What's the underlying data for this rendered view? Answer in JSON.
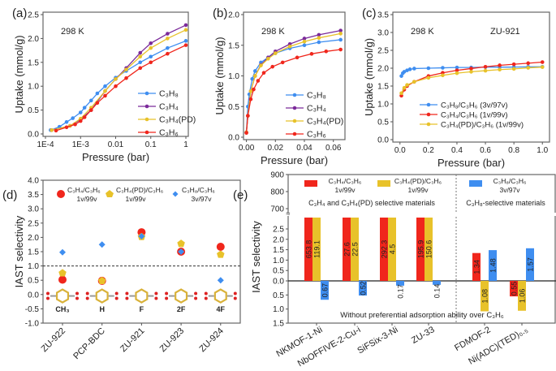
{
  "colors": {
    "blue": "#3f8ef0",
    "purple": "#7b2a9a",
    "yellow": "#e8c22a",
    "red": "#f0261c",
    "axis": "#555555",
    "highlight": "#e8322a"
  },
  "chart_data": [
    {
      "panel": "(a)",
      "type": "line",
      "annotation": "298 K",
      "xlabel": "Pressure (bar)",
      "ylabel": "Uptake (mmol/g)",
      "xscale": "log",
      "xlim": [
        0.0001,
        1
      ],
      "ylim": [
        0,
        2.5
      ],
      "xticks": [
        0.0001,
        0.001,
        0.01,
        0.1,
        1
      ],
      "xtick_labels": [
        "1E-4",
        "1E-3",
        "0.01",
        "0.1",
        "1"
      ],
      "yticks": [
        0,
        0.5,
        1,
        1.5,
        2,
        2.5
      ],
      "ytick_labels": [
        "0.0",
        "0.5",
        "1.0",
        "1.5",
        "2.0",
        "2.5"
      ],
      "legend": "bottom-right",
      "series": [
        {
          "name": "C₃H₈",
          "color": "blue",
          "x": [
            0.00014,
            0.00025,
            0.0004,
            0.0006,
            0.001,
            0.0013,
            0.002,
            0.003,
            0.005,
            0.01,
            0.02,
            0.05,
            0.1,
            0.3,
            1
          ],
          "y": [
            0.08,
            0.15,
            0.25,
            0.33,
            0.45,
            0.55,
            0.7,
            0.85,
            1.0,
            1.18,
            1.32,
            1.5,
            1.62,
            1.8,
            1.95
          ]
        },
        {
          "name": "C₃H₄",
          "color": "purple",
          "x": [
            0.00015,
            0.0005,
            0.001,
            0.002,
            0.005,
            0.01,
            0.02,
            0.05,
            0.1,
            0.3,
            1
          ],
          "y": [
            0.08,
            0.17,
            0.3,
            0.5,
            0.9,
            1.15,
            1.38,
            1.7,
            1.9,
            2.1,
            2.28
          ]
        },
        {
          "name": "C₃H₄(PD)",
          "color": "yellow",
          "x": [
            0.00015,
            0.0005,
            0.001,
            0.002,
            0.005,
            0.01,
            0.02,
            0.05,
            0.1,
            0.3,
            1
          ],
          "y": [
            0.08,
            0.17,
            0.32,
            0.55,
            0.9,
            1.15,
            1.35,
            1.62,
            1.8,
            2.0,
            2.18
          ]
        },
        {
          "name": "C₃H₆",
          "color": "red",
          "x": [
            0.0002,
            0.0004,
            0.0007,
            0.001,
            0.0013,
            0.002,
            0.003,
            0.005,
            0.01,
            0.02,
            0.05,
            0.1,
            0.3,
            1
          ],
          "y": [
            0.07,
            0.14,
            0.2,
            0.27,
            0.35,
            0.5,
            0.65,
            0.8,
            1.0,
            1.17,
            1.38,
            1.5,
            1.68,
            1.86
          ]
        }
      ]
    },
    {
      "panel": "(b)",
      "type": "line",
      "annotation": "298 K",
      "xlabel": "Pressure (bar)",
      "ylabel": "Uptake (mmol/g)",
      "xlim": [
        -0.002,
        0.068
      ],
      "ylim": [
        0,
        2.0
      ],
      "xticks": [
        0,
        0.02,
        0.04,
        0.06
      ],
      "xtick_labels": [
        "0.00",
        "0.02",
        "0.04",
        "0.06"
      ],
      "yticks": [
        0,
        0.5,
        1,
        1.5,
        2
      ],
      "ytick_labels": [
        "0.0",
        "0.5",
        "1.0",
        "1.5",
        "2.0"
      ],
      "legend": "bottom-right",
      "series": [
        {
          "name": "C₃H₈",
          "color": "blue",
          "x": [
            0,
            0.001,
            0.002,
            0.004,
            0.006,
            0.01,
            0.015,
            0.02,
            0.03,
            0.04,
            0.05,
            0.065
          ],
          "y": [
            0.08,
            0.5,
            0.7,
            0.95,
            1.08,
            1.22,
            1.3,
            1.37,
            1.45,
            1.5,
            1.55,
            1.59
          ]
        },
        {
          "name": "C₃H₄",
          "color": "purple",
          "x": [
            0,
            0.001,
            0.003,
            0.006,
            0.01,
            0.015,
            0.02,
            0.03,
            0.04,
            0.05,
            0.065
          ],
          "y": [
            0.08,
            0.35,
            0.75,
            1.0,
            1.18,
            1.3,
            1.4,
            1.52,
            1.61,
            1.67,
            1.74
          ]
        },
        {
          "name": "C₃H₄(PD)",
          "color": "yellow",
          "x": [
            0,
            0.001,
            0.003,
            0.006,
            0.01,
            0.015,
            0.02,
            0.03,
            0.04,
            0.05,
            0.065
          ],
          "y": [
            0.08,
            0.35,
            0.75,
            1.0,
            1.17,
            1.28,
            1.37,
            1.48,
            1.56,
            1.62,
            1.69
          ]
        },
        {
          "name": "C₃H₆",
          "color": "red",
          "x": [
            0,
            0.001,
            0.003,
            0.005,
            0.008,
            0.012,
            0.018,
            0.025,
            0.035,
            0.045,
            0.055,
            0.065
          ],
          "y": [
            0.07,
            0.35,
            0.62,
            0.78,
            0.92,
            1.05,
            1.15,
            1.22,
            1.3,
            1.36,
            1.4,
            1.43
          ]
        }
      ]
    },
    {
      "panel": "(c)",
      "type": "line",
      "annotation": "298 K",
      "annotation2": "ZU-921",
      "xlabel": "Pressure (bar)",
      "ylabel": "Uptake (mmol/g)",
      "xlim": [
        -0.05,
        1.05
      ],
      "ylim": [
        0,
        3.5
      ],
      "xticks": [
        0,
        0.2,
        0.4,
        0.6,
        0.8,
        1.0
      ],
      "xtick_labels": [
        "0.0",
        "0.2",
        "0.4",
        "0.6",
        "0.8",
        "1.0"
      ],
      "yticks": [
        0,
        0.5,
        1,
        1.5,
        2,
        2.5,
        3,
        3.5
      ],
      "ytick_labels": [
        "0.0",
        "0.5",
        "1.0",
        "1.5",
        "2.0",
        "2.5",
        "3.0",
        "3.5"
      ],
      "legend": "bottom",
      "series": [
        {
          "name": "C₃H₈/C₃H₆  (3v/97v)",
          "color": "blue",
          "x": [
            0.01,
            0.02,
            0.03,
            0.05,
            0.07,
            0.1,
            0.2,
            0.3,
            0.4,
            0.5,
            0.6,
            0.7,
            0.8,
            0.9,
            1.0
          ],
          "y": [
            1.78,
            1.86,
            1.9,
            1.94,
            1.97,
            1.99,
            2.0,
            2.01,
            2.02,
            2.02,
            2.03,
            2.03,
            2.03,
            2.04,
            2.04
          ]
        },
        {
          "name": "C₃H₄/C₃H₆  (1v/99v)",
          "color": "red",
          "x": [
            0.01,
            0.03,
            0.05,
            0.1,
            0.2,
            0.3,
            0.4,
            0.5,
            0.6,
            0.7,
            0.8,
            0.9,
            1.0
          ],
          "y": [
            1.23,
            1.4,
            1.5,
            1.62,
            1.78,
            1.87,
            1.94,
            1.99,
            2.04,
            2.08,
            2.11,
            2.14,
            2.17
          ]
        },
        {
          "name": "C₃H₄(PD)/C₃H₆ (1v/99v)",
          "color": "yellow",
          "x": [
            0.01,
            0.03,
            0.05,
            0.1,
            0.2,
            0.3,
            0.4,
            0.5,
            0.6,
            0.7,
            0.8,
            0.9,
            1.0
          ],
          "y": [
            1.3,
            1.45,
            1.53,
            1.62,
            1.73,
            1.8,
            1.86,
            1.9,
            1.93,
            1.96,
            1.98,
            2.01,
            2.03
          ]
        }
      ]
    },
    {
      "panel": "(d)",
      "type": "scatter",
      "ylabel": "IAST selectivity",
      "ylim": [
        -1,
        4
      ],
      "yticks": [
        -1,
        -0.5,
        0,
        0.5,
        1,
        1.5,
        2,
        2.5,
        3,
        3.5,
        4
      ],
      "ytick_labels": [
        "-1.0",
        "-0.5",
        "0.0",
        "0.5",
        "1.0",
        "1.5",
        "2.0",
        "2.5",
        "3.0",
        "3.5",
        "4.0"
      ],
      "reference_line": 1.0,
      "categories": [
        "ZU-922",
        "PCP-BDC",
        "ZU-921",
        "ZU-923",
        "ZU-924"
      ],
      "highlight_category": "ZU-921",
      "substituents": [
        "CH₃",
        "H",
        "F",
        "2F",
        "4F"
      ],
      "legend": "top",
      "series": [
        {
          "name": "C₃H₄/C₃H₆",
          "ratio": "1v/99v",
          "color": "red",
          "marker": "circle",
          "values": [
            0.52,
            0.48,
            2.18,
            1.5,
            1.67
          ]
        },
        {
          "name": "C₃H₄(PD)/C₃H₆",
          "ratio": "1v/99v",
          "color": "yellow",
          "marker": "pentagon",
          "values": [
            0.75,
            0.48,
            2.02,
            1.78,
            1.4
          ]
        },
        {
          "name": "C₃H₈/C₃H₆",
          "ratio": "3v/97v",
          "color": "blue",
          "marker": "diamond",
          "values": [
            1.48,
            1.75,
            2.04,
            1.5,
            0.5
          ]
        }
      ]
    },
    {
      "panel": "(e)",
      "type": "bar",
      "ylabel": "IAST selectivity",
      "upper_yticks": [
        700,
        800,
        900
      ],
      "upper_ytick_labels": [
        "700",
        "800",
        "900"
      ],
      "lower_yticks": [
        0,
        0.5,
        1,
        1.5,
        2,
        2.5
      ],
      "lower_ytick_labels": [
        "0.0",
        "0.5",
        "1.0",
        "1.5",
        "2.0",
        "2.5"
      ],
      "below_yticks": [
        0.5,
        1.0,
        1.5
      ],
      "below_ytick_labels": [
        "0.5",
        "1.0",
        "1.5"
      ],
      "categories": [
        "NKMOF-1-Ni",
        "NbOFFIVE-2-Cu-i",
        "SiFSix-3-Ni",
        "ZU-33",
        "FDMOF-2",
        "Ni(ADC)(TED)₀.₅"
      ],
      "group_labels": [
        "C₃H₄ and C₃H₄(PD) selective  materials",
        "C₃H₈-selective materials"
      ],
      "bottom_note": "Without preferential  adsorption  ability  over  C₃H₆",
      "legend": "top",
      "series": [
        {
          "name": "C₃H₄/C₃H₆",
          "ratio": "1v/99v",
          "color": "red",
          "values": [
            653.8,
            27.6,
            292.3,
            195.9,
            1.34,
            0.55
          ],
          "labels": [
            "653.8",
            "27.6",
            "292.3",
            "195.9",
            "1.34",
            "0.55"
          ],
          "direction": [
            "up",
            "up",
            "up",
            "up",
            "up",
            "down"
          ]
        },
        {
          "name": "C₃H₄(PD)/C₃H₆",
          "ratio": "1v/99v",
          "color": "yellow",
          "values": [
            119.1,
            22.5,
            4.5,
            150.6,
            1.08,
            1.06
          ],
          "labels": [
            "119.1",
            "22.5",
            "4.5",
            "150.6",
            "1.08",
            "1.06"
          ],
          "direction": [
            "up",
            "up",
            "up",
            "up",
            "down",
            "down"
          ]
        },
        {
          "name": "C₃H₈/C₃H₆",
          "ratio": "3v/97v",
          "color": "blue",
          "values": [
            0.67,
            0.52,
            0.17,
            0.14,
            1.48,
            1.57
          ],
          "labels": [
            "0.67",
            "0.52",
            "0.17",
            "0.14",
            "1.48",
            "1.57"
          ],
          "direction": [
            "down",
            "down",
            "down",
            "down",
            "up",
            "up"
          ]
        }
      ]
    }
  ]
}
